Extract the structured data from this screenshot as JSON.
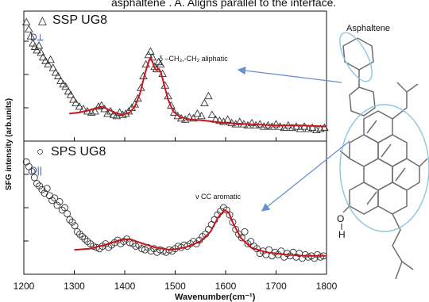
{
  "header_text": "asphaltene . A. Aligns parallel to the interface.",
  "molecule_label": "Asphaltene",
  "chart_data": [
    {
      "type": "scatter",
      "panel": "top",
      "title": "SSP UG8",
      "orientation_label": "D⟂",
      "annotation": "δ –CH₃,-CH₂ aliphatic",
      "marker": "triangle",
      "xlim": [
        1200,
        1800
      ],
      "ylim": [
        0,
        1
      ],
      "points": [
        [
          1205,
          0.96
        ],
        [
          1210,
          0.9
        ],
        [
          1214,
          0.84
        ],
        [
          1218,
          0.78
        ],
        [
          1222,
          0.75
        ],
        [
          1226,
          0.72
        ],
        [
          1230,
          0.76
        ],
        [
          1234,
          0.7
        ],
        [
          1238,
          0.66
        ],
        [
          1243,
          0.63
        ],
        [
          1248,
          0.6
        ],
        [
          1253,
          0.64
        ],
        [
          1258,
          0.57
        ],
        [
          1263,
          0.53
        ],
        [
          1268,
          0.5
        ],
        [
          1273,
          0.46
        ],
        [
          1278,
          0.43
        ],
        [
          1283,
          0.41
        ],
        [
          1288,
          0.37
        ],
        [
          1293,
          0.34
        ],
        [
          1298,
          0.3
        ],
        [
          1303,
          0.27
        ],
        [
          1310,
          0.24
        ],
        [
          1318,
          0.22
        ],
        [
          1326,
          0.2
        ],
        [
          1334,
          0.19
        ],
        [
          1341,
          0.2
        ],
        [
          1348,
          0.24
        ],
        [
          1354,
          0.25
        ],
        [
          1360,
          0.22
        ],
        [
          1366,
          0.18
        ],
        [
          1372,
          0.2
        ],
        [
          1378,
          0.17
        ],
        [
          1384,
          0.16
        ],
        [
          1390,
          0.19
        ],
        [
          1396,
          0.17
        ],
        [
          1402,
          0.18
        ],
        [
          1408,
          0.2
        ],
        [
          1414,
          0.23
        ],
        [
          1420,
          0.26
        ],
        [
          1426,
          0.31
        ],
        [
          1432,
          0.4
        ],
        [
          1437,
          0.5
        ],
        [
          1442,
          0.6
        ],
        [
          1447,
          0.68
        ],
        [
          1451,
          0.71
        ],
        [
          1455,
          0.66
        ],
        [
          1459,
          0.58
        ],
        [
          1463,
          0.56
        ],
        [
          1467,
          0.62
        ],
        [
          1471,
          0.6
        ],
        [
          1475,
          0.52
        ],
        [
          1480,
          0.42
        ],
        [
          1486,
          0.33
        ],
        [
          1492,
          0.25
        ],
        [
          1498,
          0.19
        ],
        [
          1505,
          0.16
        ],
        [
          1512,
          0.14
        ],
        [
          1520,
          0.13
        ],
        [
          1528,
          0.15
        ],
        [
          1536,
          0.14
        ],
        [
          1544,
          0.18
        ],
        [
          1552,
          0.16
        ],
        [
          1558,
          0.27
        ],
        [
          1566,
          0.33
        ],
        [
          1573,
          0.17
        ],
        [
          1580,
          0.13
        ],
        [
          1588,
          0.12
        ],
        [
          1596,
          0.11
        ],
        [
          1604,
          0.13
        ],
        [
          1612,
          0.1
        ],
        [
          1620,
          0.09
        ],
        [
          1628,
          0.11
        ],
        [
          1636,
          0.09
        ],
        [
          1644,
          0.08
        ],
        [
          1652,
          0.1
        ],
        [
          1660,
          0.08
        ],
        [
          1668,
          0.09
        ],
        [
          1676,
          0.07
        ],
        [
          1684,
          0.08
        ],
        [
          1692,
          0.07
        ],
        [
          1700,
          0.09
        ],
        [
          1708,
          0.07
        ],
        [
          1716,
          0.06
        ],
        [
          1724,
          0.08
        ],
        [
          1732,
          0.06
        ],
        [
          1740,
          0.07
        ],
        [
          1748,
          0.05
        ],
        [
          1756,
          0.07
        ],
        [
          1764,
          0.05
        ],
        [
          1772,
          0.06
        ],
        [
          1780,
          0.04
        ],
        [
          1788,
          0.05
        ],
        [
          1796,
          0.06
        ]
      ],
      "fit": [
        [
          1290,
          0.18
        ],
        [
          1310,
          0.19
        ],
        [
          1330,
          0.21
        ],
        [
          1345,
          0.23
        ],
        [
          1355,
          0.24
        ],
        [
          1365,
          0.22
        ],
        [
          1380,
          0.19
        ],
        [
          1395,
          0.17
        ],
        [
          1410,
          0.19
        ],
        [
          1420,
          0.24
        ],
        [
          1430,
          0.35
        ],
        [
          1440,
          0.52
        ],
        [
          1448,
          0.63
        ],
        [
          1452,
          0.65
        ],
        [
          1456,
          0.61
        ],
        [
          1460,
          0.56
        ],
        [
          1464,
          0.55
        ],
        [
          1468,
          0.56
        ],
        [
          1472,
          0.53
        ],
        [
          1478,
          0.43
        ],
        [
          1486,
          0.3
        ],
        [
          1496,
          0.2
        ],
        [
          1510,
          0.15
        ],
        [
          1530,
          0.13
        ],
        [
          1560,
          0.12
        ],
        [
          1600,
          0.1
        ],
        [
          1650,
          0.09
        ],
        [
          1700,
          0.08
        ],
        [
          1750,
          0.08
        ],
        [
          1800,
          0.07
        ]
      ]
    },
    {
      "type": "scatter",
      "panel": "bottom",
      "title": "SPS UG8",
      "orientation_label": "D||",
      "annotation": "ν CC aromatic",
      "marker": "circle",
      "xlim": [
        1200,
        1800
      ],
      "ylim": [
        0,
        1
      ],
      "xticks": [
        1200,
        1300,
        1400,
        1500,
        1600,
        1700,
        1800
      ],
      "xlabel": "Wavenumber(cm⁻¹)",
      "ylabel": "SFG intensity (arb.units)",
      "points": [
        [
          1205,
          0.88
        ],
        [
          1210,
          0.84
        ],
        [
          1216,
          0.8
        ],
        [
          1221,
          0.75
        ],
        [
          1226,
          0.7
        ],
        [
          1231,
          0.68
        ],
        [
          1236,
          0.65
        ],
        [
          1241,
          0.62
        ],
        [
          1246,
          0.66
        ],
        [
          1251,
          0.6
        ],
        [
          1256,
          0.56
        ],
        [
          1261,
          0.58
        ],
        [
          1266,
          0.52
        ],
        [
          1271,
          0.55
        ],
        [
          1276,
          0.48
        ],
        [
          1281,
          0.5
        ],
        [
          1286,
          0.45
        ],
        [
          1291,
          0.4
        ],
        [
          1296,
          0.38
        ],
        [
          1301,
          0.35
        ],
        [
          1306,
          0.3
        ],
        [
          1311,
          0.28
        ],
        [
          1316,
          0.26
        ],
        [
          1321,
          0.24
        ],
        [
          1326,
          0.22
        ],
        [
          1332,
          0.2
        ],
        [
          1338,
          0.18
        ],
        [
          1344,
          0.17
        ],
        [
          1350,
          0.16
        ],
        [
          1356,
          0.18
        ],
        [
          1362,
          0.2
        ],
        [
          1368,
          0.17
        ],
        [
          1374,
          0.19
        ],
        [
          1380,
          0.21
        ],
        [
          1386,
          0.23
        ],
        [
          1392,
          0.2
        ],
        [
          1398,
          0.22
        ],
        [
          1404,
          0.24
        ],
        [
          1410,
          0.21
        ],
        [
          1416,
          0.2
        ],
        [
          1422,
          0.18
        ],
        [
          1428,
          0.19
        ],
        [
          1434,
          0.16
        ],
        [
          1440,
          0.15
        ],
        [
          1446,
          0.17
        ],
        [
          1452,
          0.14
        ],
        [
          1458,
          0.16
        ],
        [
          1464,
          0.13
        ],
        [
          1470,
          0.15
        ],
        [
          1476,
          0.14
        ],
        [
          1482,
          0.13
        ],
        [
          1488,
          0.15
        ],
        [
          1494,
          0.14
        ],
        [
          1500,
          0.16
        ],
        [
          1506,
          0.18
        ],
        [
          1512,
          0.17
        ],
        [
          1518,
          0.19
        ],
        [
          1524,
          0.18
        ],
        [
          1530,
          0.2
        ],
        [
          1536,
          0.22
        ],
        [
          1542,
          0.2
        ],
        [
          1548,
          0.23
        ],
        [
          1554,
          0.26
        ],
        [
          1560,
          0.28
        ],
        [
          1566,
          0.32
        ],
        [
          1572,
          0.36
        ],
        [
          1578,
          0.4
        ],
        [
          1584,
          0.44
        ],
        [
          1590,
          0.47
        ],
        [
          1596,
          0.5
        ],
        [
          1602,
          0.48
        ],
        [
          1608,
          0.44
        ],
        [
          1614,
          0.38
        ],
        [
          1620,
          0.32
        ],
        [
          1626,
          0.28
        ],
        [
          1632,
          0.25
        ],
        [
          1638,
          0.3
        ],
        [
          1644,
          0.2
        ],
        [
          1650,
          0.22
        ],
        [
          1656,
          0.18
        ],
        [
          1662,
          0.16
        ],
        [
          1668,
          0.12
        ],
        [
          1674,
          0.14
        ],
        [
          1680,
          0.11
        ],
        [
          1686,
          0.15
        ],
        [
          1692,
          0.1
        ],
        [
          1698,
          0.13
        ],
        [
          1704,
          0.11
        ],
        [
          1710,
          0.14
        ],
        [
          1716,
          0.09
        ],
        [
          1722,
          0.12
        ],
        [
          1728,
          0.1
        ],
        [
          1734,
          0.13
        ],
        [
          1740,
          0.09
        ],
        [
          1746,
          0.12
        ],
        [
          1752,
          0.08
        ],
        [
          1758,
          0.11
        ],
        [
          1764,
          0.09
        ],
        [
          1770,
          0.1
        ],
        [
          1776,
          0.08
        ],
        [
          1782,
          0.11
        ],
        [
          1788,
          0.09
        ],
        [
          1794,
          0.1
        ]
      ],
      "fit": [
        [
          1300,
          0.15
        ],
        [
          1330,
          0.16
        ],
        [
          1360,
          0.19
        ],
        [
          1390,
          0.23
        ],
        [
          1410,
          0.24
        ],
        [
          1430,
          0.21
        ],
        [
          1460,
          0.17
        ],
        [
          1490,
          0.15
        ],
        [
          1520,
          0.17
        ],
        [
          1550,
          0.22
        ],
        [
          1570,
          0.3
        ],
        [
          1585,
          0.42
        ],
        [
          1598,
          0.48
        ],
        [
          1606,
          0.46
        ],
        [
          1615,
          0.37
        ],
        [
          1630,
          0.25
        ],
        [
          1650,
          0.17
        ],
        [
          1680,
          0.13
        ],
        [
          1720,
          0.11
        ],
        [
          1760,
          0.1
        ],
        [
          1800,
          0.1
        ]
      ]
    }
  ],
  "colors": {
    "fit_line": "#c8161d",
    "arrow": "#6a8fcc",
    "highlight": "#8ec6dd",
    "orientation_label": "#2f4fa8"
  }
}
